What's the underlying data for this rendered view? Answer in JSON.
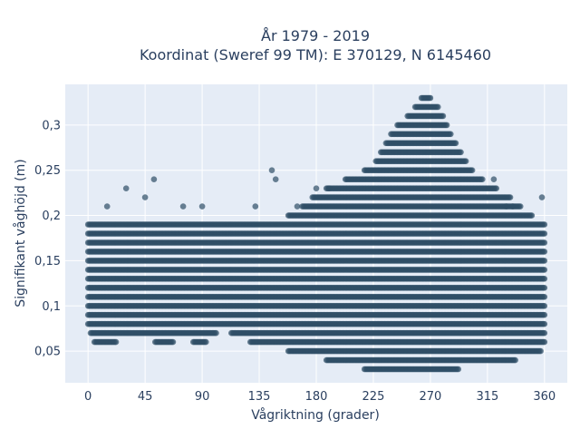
{
  "colors": {
    "plot_background": "#e5ecf6",
    "grid": "#ffffff",
    "marker": "#2f4f66",
    "text": "#2a3f5f"
  },
  "chart_data": {
    "type": "scatter",
    "title_line1": "År 1979 - 2019",
    "title_line2": "Koordinat (Sweref 99 TM): E 370129, N 6145460",
    "xlabel": "Vågriktning (grader)",
    "ylabel": "Signifikant våghöjd (m)",
    "xlim": [
      -18,
      378
    ],
    "ylim": [
      0.015,
      0.345
    ],
    "x_ticks": [
      0,
      45,
      90,
      135,
      180,
      225,
      270,
      315,
      360
    ],
    "x_tick_labels": [
      "0",
      "45",
      "90",
      "135",
      "180",
      "225",
      "270",
      "315",
      "360"
    ],
    "y_ticks": [
      0.05,
      0.1,
      0.15,
      0.2,
      0.25,
      0.3
    ],
    "y_tick_labels": [
      "0,05",
      "0,1",
      "0,15",
      "0,2",
      "0,25",
      "0,3"
    ],
    "grid": true,
    "marker_opacity": 0.7,
    "direction_step_deg": 1,
    "height_step_m": 0.01,
    "direction_extent": [
      [
        0,
        0.08,
        0.19
      ],
      [
        6,
        0.06,
        0.19
      ],
      [
        15,
        0.06,
        0.19
      ],
      [
        30,
        0.07,
        0.19
      ],
      [
        45,
        0.07,
        0.19
      ],
      [
        60,
        0.06,
        0.19
      ],
      [
        75,
        0.07,
        0.19
      ],
      [
        90,
        0.06,
        0.19
      ],
      [
        105,
        0.08,
        0.19
      ],
      [
        120,
        0.07,
        0.19
      ],
      [
        135,
        0.06,
        0.19
      ],
      [
        150,
        0.06,
        0.19
      ],
      [
        165,
        0.05,
        0.2
      ],
      [
        180,
        0.05,
        0.22
      ],
      [
        195,
        0.04,
        0.23
      ],
      [
        210,
        0.04,
        0.24
      ],
      [
        225,
        0.03,
        0.25
      ],
      [
        240,
        0.03,
        0.29
      ],
      [
        255,
        0.03,
        0.31
      ],
      [
        265,
        0.03,
        0.33
      ],
      [
        275,
        0.03,
        0.32
      ],
      [
        285,
        0.03,
        0.29
      ],
      [
        300,
        0.04,
        0.25
      ],
      [
        315,
        0.04,
        0.23
      ],
      [
        330,
        0.04,
        0.22
      ],
      [
        345,
        0.05,
        0.2
      ],
      [
        355,
        0.05,
        0.19
      ],
      [
        360,
        0.06,
        0.19
      ]
    ],
    "outliers": [
      [
        15,
        0.21
      ],
      [
        30,
        0.23
      ],
      [
        45,
        0.22
      ],
      [
        52,
        0.24
      ],
      [
        75,
        0.21
      ],
      [
        90,
        0.21
      ],
      [
        132,
        0.21
      ],
      [
        145,
        0.25
      ],
      [
        148,
        0.24
      ],
      [
        165,
        0.21
      ],
      [
        180,
        0.23
      ],
      [
        190,
        0.23
      ],
      [
        320,
        0.24
      ],
      [
        330,
        0.21
      ],
      [
        335,
        0.21
      ],
      [
        358,
        0.22
      ]
    ]
  }
}
